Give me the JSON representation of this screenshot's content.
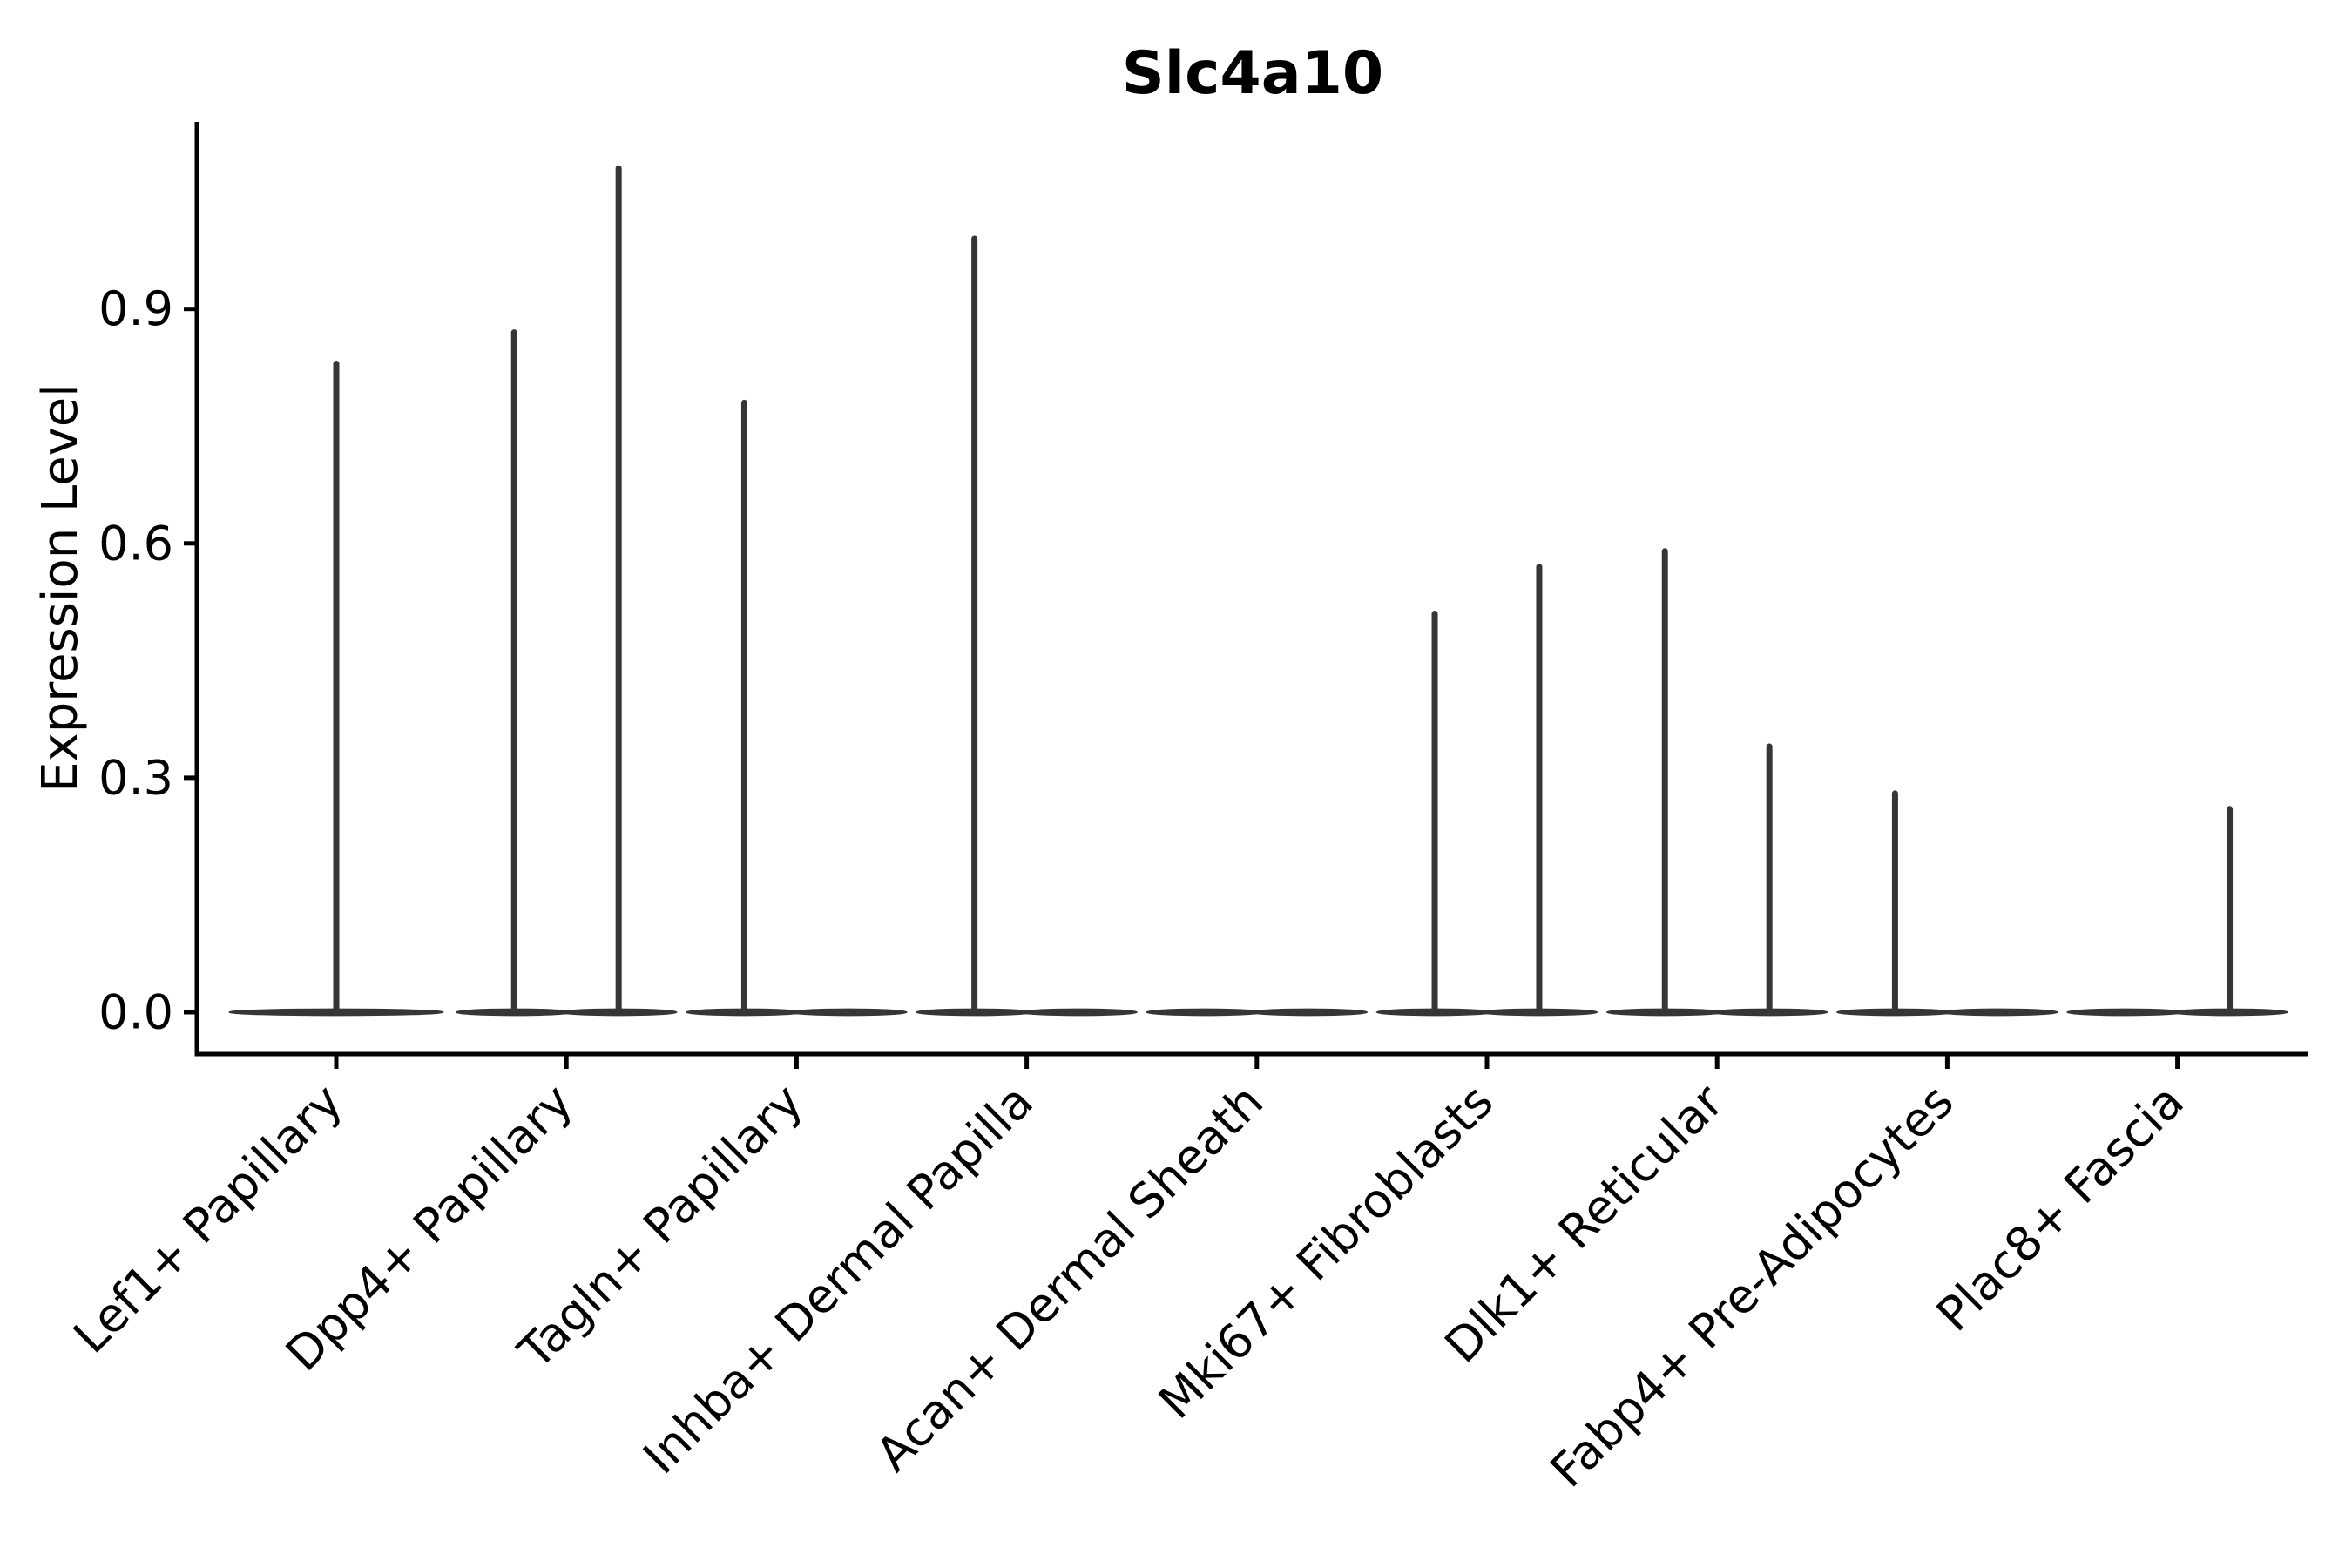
{
  "chart_data": {
    "type": "violin",
    "title": "Slc4a10",
    "xlabel": "",
    "ylabel": "Expression Level",
    "grid": false,
    "legend": "none",
    "ylim": [
      -0.057,
      1.139
    ],
    "yticks": [
      {
        "value": 0.0,
        "label": "0.0"
      },
      {
        "value": 0.3,
        "label": "0.3"
      },
      {
        "value": 0.6,
        "label": "0.6"
      },
      {
        "value": 0.9,
        "label": "0.9"
      }
    ],
    "categories": [
      "Lef1+ Papillary",
      "Dpp4+ Papillary",
      "Tagln+ Papillary",
      "Inhba+ Dermal Papilla",
      "Acan+ Dermal Sheath",
      "Mki67+ Fibroblasts",
      "Dlk1+ Reticular",
      "Fabp4+ Pre-Adipocytes",
      "Plac8+ Fascia"
    ],
    "violin_note": "Each violin is flat at expression 0 (pancake) with a thin density spike up to the max expressed value; most categories contain two dodged sub-violins.",
    "violins": [
      {
        "category": "Lef1+ Papillary",
        "groups": [
          {
            "offset_frac": 0.0,
            "rel_width": 0.93,
            "max": 0.83
          }
        ]
      },
      {
        "category": "Dpp4+ Papillary",
        "groups": [
          {
            "offset_frac": -0.227,
            "rel_width": 0.505,
            "max": 0.87
          },
          {
            "offset_frac": 0.227,
            "rel_width": 0.505,
            "max": 1.08
          }
        ]
      },
      {
        "category": "Tagln+ Papillary",
        "groups": [
          {
            "offset_frac": -0.227,
            "rel_width": 0.505,
            "max": 0.78
          },
          {
            "offset_frac": 0.227,
            "rel_width": 0.505,
            "max": 0
          }
        ]
      },
      {
        "category": "Inhba+ Dermal Papilla",
        "groups": [
          {
            "offset_frac": -0.227,
            "rel_width": 0.505,
            "max": 0.99
          },
          {
            "offset_frac": 0.227,
            "rel_width": 0.505,
            "max": 0
          }
        ]
      },
      {
        "category": "Acan+ Dermal Sheath",
        "groups": [
          {
            "offset_frac": -0.227,
            "rel_width": 0.505,
            "max": 0
          },
          {
            "offset_frac": 0.227,
            "rel_width": 0.505,
            "max": 0
          }
        ]
      },
      {
        "category": "Mki67+ Fibroblasts",
        "groups": [
          {
            "offset_frac": -0.227,
            "rel_width": 0.505,
            "max": 0.51
          },
          {
            "offset_frac": 0.227,
            "rel_width": 0.505,
            "max": 0.57
          }
        ]
      },
      {
        "category": "Dlk1+ Reticular",
        "groups": [
          {
            "offset_frac": -0.227,
            "rel_width": 0.505,
            "max": 0.59
          },
          {
            "offset_frac": 0.227,
            "rel_width": 0.505,
            "max": 0.34
          }
        ]
      },
      {
        "category": "Fabp4+ Pre-Adipocytes",
        "groups": [
          {
            "offset_frac": -0.227,
            "rel_width": 0.505,
            "max": 0.28
          },
          {
            "offset_frac": 0.227,
            "rel_width": 0.505,
            "max": 0
          }
        ]
      },
      {
        "category": "Plac8+ Fascia",
        "groups": [
          {
            "offset_frac": -0.227,
            "rel_width": 0.505,
            "max": 0
          },
          {
            "offset_frac": 0.227,
            "rel_width": 0.505,
            "max": 0.26
          }
        ]
      }
    ],
    "colors": {
      "violin": "#363636",
      "axis": "#000000",
      "text": "#000000",
      "background": "#ffffff"
    }
  }
}
